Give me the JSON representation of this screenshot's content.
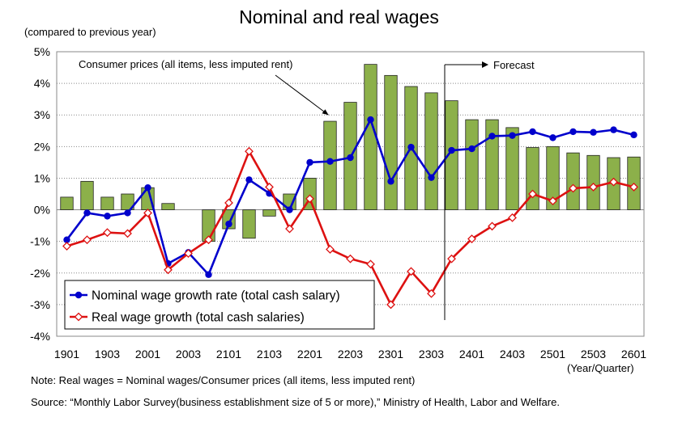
{
  "chart_data": {
    "type": "bar+line",
    "title": "Nominal and real wages",
    "ylabel": "(compared to previous year)",
    "xlabel": "(Year/Quarter)",
    "ylim": [
      -4,
      5
    ],
    "yticks": [
      "-4%",
      "-3%",
      "-2%",
      "-1%",
      "0%",
      "1%",
      "2%",
      "3%",
      "4%",
      "5%"
    ],
    "categories": [
      "1901",
      "1902",
      "1903",
      "1904",
      "2001",
      "2002",
      "2003",
      "2004",
      "2101",
      "2102",
      "2103",
      "2104",
      "2201",
      "2202",
      "2203",
      "2204",
      "2301",
      "2302",
      "2303",
      "2304",
      "2401",
      "2402",
      "2403",
      "2404",
      "2501",
      "2502",
      "2503",
      "2504",
      "2601"
    ],
    "xtick_labels": [
      "1901",
      "1903",
      "2001",
      "2003",
      "2101",
      "2103",
      "2201",
      "2203",
      "2301",
      "2303",
      "2401",
      "2403",
      "2501",
      "2503",
      "2601"
    ],
    "series": [
      {
        "kind": "bar",
        "name": "Consumer prices (all items, less imputed rent)",
        "color": "#8cb04a",
        "values": [
          0.4,
          0.9,
          0.4,
          0.5,
          0.7,
          0.2,
          null,
          -1.0,
          -0.6,
          -0.9,
          -0.2,
          0.5,
          1.0,
          2.8,
          3.4,
          4.6,
          4.25,
          3.9,
          3.7,
          3.45,
          2.85,
          2.85,
          2.6,
          1.97,
          2.0,
          1.8,
          1.72,
          1.65,
          1.67
        ]
      },
      {
        "kind": "line",
        "name": "Nominal wage growth rate (total cash salary)",
        "color": "#0000cc",
        "values": [
          -0.95,
          -0.1,
          -0.2,
          -0.1,
          0.7,
          -1.7,
          -1.35,
          -2.05,
          -0.45,
          0.95,
          0.52,
          0.0,
          1.5,
          1.53,
          1.65,
          2.85,
          0.9,
          1.98,
          1.02,
          1.88,
          1.93,
          2.33,
          2.35,
          2.47,
          2.28,
          2.47,
          2.45,
          2.53,
          2.37
        ]
      },
      {
        "kind": "line",
        "name": "Real wage growth (total cash salaries)",
        "color": "#dd1111",
        "values": [
          -1.15,
          -0.95,
          -0.72,
          -0.75,
          -0.1,
          -1.9,
          -1.38,
          -0.95,
          0.22,
          1.85,
          0.72,
          -0.6,
          0.35,
          -1.25,
          -1.55,
          -1.72,
          -3.0,
          -1.95,
          -2.65,
          -1.55,
          -0.92,
          -0.52,
          -0.25,
          0.5,
          0.28,
          0.68,
          0.72,
          0.88,
          0.72
        ]
      }
    ],
    "annotations": {
      "cpi_label": "Consumer prices (all items, less imputed rent)",
      "forecast_label": "Forecast",
      "forecast_start_category": "2304"
    },
    "legend_position": "bottom-left",
    "grid": "horizontal"
  },
  "footer": {
    "note": "Note: Real wages = Nominal wages/Consumer prices (all items, less imputed rent)",
    "source": "Source: “Monthly Labor Survey(business establishment size of 5 or more),” Ministry of Health, Labor and Welfare."
  }
}
